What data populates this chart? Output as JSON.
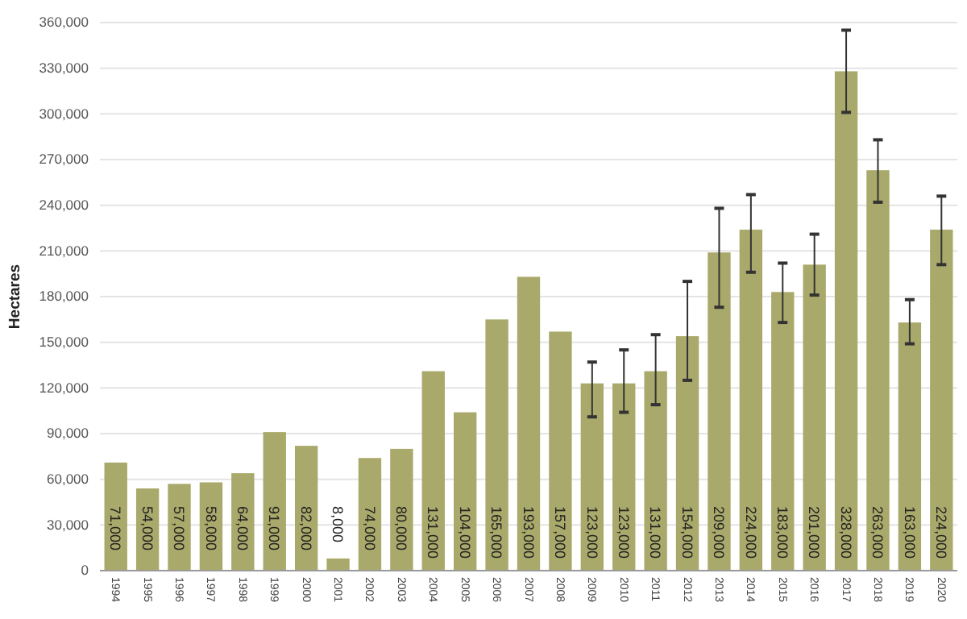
{
  "chart_data": {
    "type": "bar",
    "ylabel": "Hectares",
    "categories": [
      "1994",
      "1995",
      "1996",
      "1997",
      "1998",
      "1999",
      "2000",
      "2001",
      "2002",
      "2003",
      "2004",
      "2005",
      "2006",
      "2007",
      "2008",
      "2009",
      "2010",
      "2011",
      "2012",
      "2013",
      "2014",
      "2015",
      "2016",
      "2017",
      "2018",
      "2019",
      "2020"
    ],
    "values": [
      71000,
      54000,
      57000,
      58000,
      64000,
      91000,
      82000,
      8000,
      74000,
      80000,
      131000,
      104000,
      165000,
      193000,
      157000,
      123000,
      123000,
      131000,
      154000,
      209000,
      224000,
      183000,
      201000,
      328000,
      263000,
      163000,
      224000
    ],
    "value_labels": [
      "71,000",
      "54,000",
      "57,000",
      "58,000",
      "64,000",
      "91,000",
      "82,000",
      "8,000",
      "74,000",
      "80,000",
      "131,000",
      "104,000",
      "165,000",
      "193,000",
      "157,000",
      "123,000",
      "123,000",
      "131,000",
      "154,000",
      "209,000",
      "224,000",
      "183,000",
      "201,000",
      "328,000",
      "263,000",
      "163,000",
      "224,000"
    ],
    "errors": [
      null,
      null,
      null,
      null,
      null,
      null,
      null,
      null,
      null,
      null,
      null,
      null,
      null,
      null,
      null,
      [
        101000,
        137000
      ],
      [
        104000,
        145000
      ],
      [
        109000,
        155000
      ],
      [
        125000,
        190000
      ],
      [
        173000,
        238000
      ],
      [
        196000,
        247000
      ],
      [
        163000,
        202000
      ],
      [
        181000,
        221000
      ],
      [
        301000,
        355000
      ],
      [
        242000,
        283000
      ],
      [
        149000,
        178000
      ],
      [
        201000,
        246000
      ]
    ],
    "color": "#a9a96b",
    "ylim": [
      0,
      360000
    ],
    "yticks": [
      0,
      {
        "value": 30000,
        "label": "30,000"
      },
      {
        "value": 60000,
        "label": "60,000"
      },
      {
        "value": 90000,
        "label": "90,000"
      },
      {
        "value": 120000,
        "label": "120,000"
      },
      {
        "value": 150000,
        "label": "150,000"
      },
      {
        "value": 180000,
        "label": "180,000"
      },
      {
        "value": 210000,
        "label": "210,000"
      },
      {
        "value": 240000,
        "label": "240,000"
      },
      {
        "value": 270000,
        "label": "270,000"
      },
      {
        "value": 300000,
        "label": "300,000"
      },
      {
        "value": 330000,
        "label": "330,000"
      },
      {
        "value": 360000,
        "label": "360,000"
      }
    ],
    "grid": "y"
  }
}
